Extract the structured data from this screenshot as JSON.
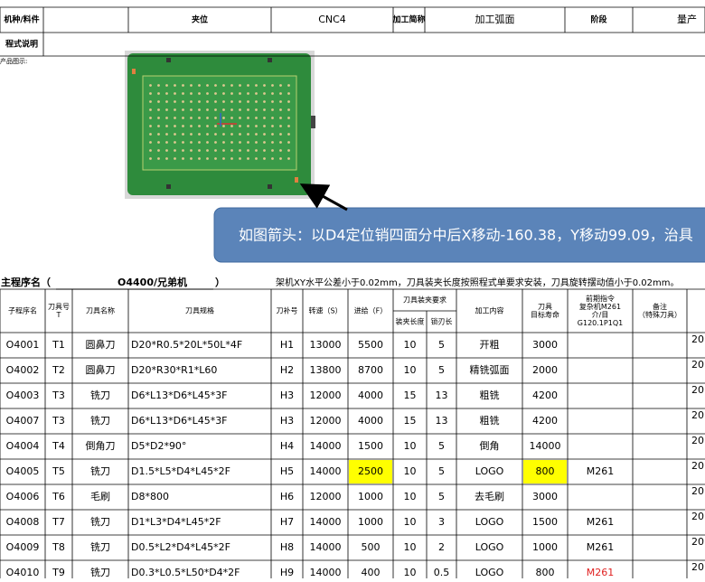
{
  "header": {
    "cells": [
      "机种/料件",
      null,
      "夹位",
      "CNC4",
      "加工简称",
      "加工弧面",
      "阶段",
      "量产"
    ],
    "program_note_label": "程式说明",
    "product_image_label": "产品图示:"
  },
  "callout": "如图箭头：以D4定位销四面分中后X移动-160.38，Y移动99.09，治具",
  "main_program": {
    "prefix": "主程序名（",
    "name": "O4400/兄弟机",
    "suffix": "）",
    "note": "架机XY水平公差小于0.02mm，刀具装夹长度按照程式单要求安装，刀具旋转摆动值小于0.02mm。"
  },
  "table": {
    "headers": [
      [
        "子程序名"
      ],
      [
        "刀具号",
        "T"
      ],
      [
        "刀具名称"
      ],
      [
        "刀具规格"
      ],
      [
        "刀补号"
      ],
      [
        "转速（S）"
      ],
      [
        "进给（F）"
      ],
      [
        "刀具装夹要求"
      ],
      [
        "加工内容"
      ],
      [
        "刀具",
        "目标寿命"
      ],
      [
        "前期指令",
        "复杂机M261",
        "介/目",
        "G120.1P1Q1"
      ],
      [
        "备注",
        "（特殊刀具）"
      ]
    ],
    "subheaders": [
      "装夹长度",
      "锁刃长"
    ],
    "rows": [
      [
        "O4001",
        "T1",
        "圆鼻刀",
        "D20*R0.5*20L*50L*4F",
        "H1",
        13000,
        5500,
        10,
        5,
        "开粗",
        3000,
        null,
        null,
        "20"
      ],
      [
        "O4002",
        "T2",
        "圆鼻刀",
        "D20*R30*R1*L60",
        "H2",
        13800,
        8700,
        10,
        5,
        "精铣弧面",
        2000,
        null,
        null,
        "20"
      ],
      [
        "O4003",
        "T3",
        "铣刀",
        "D6*L13*D6*L45*3F",
        "H3",
        12000,
        4000,
        15,
        13,
        "粗铣",
        4200,
        null,
        null,
        "20"
      ],
      [
        "O4007",
        "T3",
        "铣刀",
        "D6*L13*D6*L45*3F",
        "H3",
        12000,
        4000,
        15,
        13,
        "粗铣",
        4200,
        null,
        null,
        "20"
      ],
      [
        "O4004",
        "T4",
        "倒角刀",
        "D5*D2*90°",
        "H4",
        14000,
        1500,
        10,
        5,
        "倒角",
        14000,
        null,
        null,
        "20"
      ],
      [
        "O4005",
        "T5",
        "铣刀",
        "D1.5*L5*D4*L45*2F",
        "H5",
        14000,
        2500,
        10,
        5,
        "LOGO",
        800,
        "M261",
        null,
        "20"
      ],
      [
        "O4006",
        "T6",
        "毛刷",
        "D8*800",
        "H6",
        12000,
        1000,
        10,
        5,
        "去毛刷",
        3000,
        null,
        null,
        "20"
      ],
      [
        "O4008",
        "T7",
        "铣刀",
        "D1*L3*D4*L45*2F",
        "H7",
        14000,
        1000,
        10,
        3,
        "LOGO",
        1500,
        "M261",
        null,
        "20"
      ],
      [
        "O4009",
        "T8",
        "铣刀",
        "D0.5*L2*D4*L45*2F",
        "H8",
        14000,
        500,
        10,
        2,
        "LOGO",
        1000,
        "M261",
        null,
        "20"
      ],
      [
        "O4010",
        "T9",
        "铣刀",
        "D0.3*L0.5*L50*D4*2F",
        "H9",
        14000,
        400,
        10,
        0.5,
        "LOGO",
        800,
        "M261",
        null,
        "20"
      ]
    ]
  }
}
